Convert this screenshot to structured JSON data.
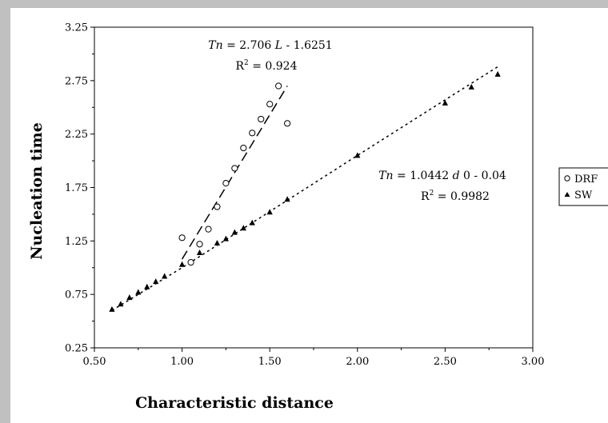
{
  "chart_data": {
    "type": "scatter",
    "xlabel": "Characteristic distance",
    "ylabel": "Nucleation time",
    "xlim": [
      0.5,
      3.0
    ],
    "ylim": [
      0.25,
      3.25
    ],
    "x_ticks": [
      "0.50",
      "1.00",
      "1.50",
      "2.00",
      "2.50",
      "3.00"
    ],
    "y_ticks": [
      "0.25",
      "0.75",
      "1.25",
      "1.75",
      "2.25",
      "2.75",
      "3.25"
    ],
    "grid": false,
    "legend_position": "right",
    "series": [
      {
        "name": "DRF",
        "marker": "open-circle",
        "points": [
          [
            1.0,
            1.28
          ],
          [
            1.05,
            1.05
          ],
          [
            1.1,
            1.22
          ],
          [
            1.15,
            1.36
          ],
          [
            1.2,
            1.57
          ],
          [
            1.25,
            1.79
          ],
          [
            1.3,
            1.93
          ],
          [
            1.35,
            2.12
          ],
          [
            1.4,
            2.26
          ],
          [
            1.45,
            2.39
          ],
          [
            1.5,
            2.53
          ],
          [
            1.55,
            2.7
          ],
          [
            1.6,
            2.35
          ]
        ]
      },
      {
        "name": "SW",
        "marker": "filled-triangle",
        "points": [
          [
            0.6,
            0.61
          ],
          [
            0.65,
            0.66
          ],
          [
            0.7,
            0.72
          ],
          [
            0.75,
            0.77
          ],
          [
            0.8,
            0.82
          ],
          [
            0.85,
            0.87
          ],
          [
            0.9,
            0.92
          ],
          [
            1.0,
            1.03
          ],
          [
            1.1,
            1.14
          ],
          [
            1.2,
            1.23
          ],
          [
            1.25,
            1.27
          ],
          [
            1.3,
            1.33
          ],
          [
            1.35,
            1.37
          ],
          [
            1.4,
            1.42
          ],
          [
            1.5,
            1.52
          ],
          [
            1.6,
            1.64
          ],
          [
            2.0,
            2.05
          ],
          [
            2.5,
            2.54
          ],
          [
            2.65,
            2.69
          ],
          [
            2.8,
            2.81
          ]
        ]
      }
    ],
    "trendlines": [
      {
        "series": "DRF",
        "style": "dashed",
        "from": [
          1.0,
          1.08
        ],
        "to": [
          1.6,
          2.7
        ],
        "equation_parts": [
          "Tn",
          " = 2.706 ",
          "L",
          " - 1.6251"
        ],
        "r2_value": " = 0.924"
      },
      {
        "series": "SW",
        "style": "dotted",
        "points": [
          [
            0.6,
            0.6
          ],
          [
            0.7,
            0.7
          ],
          [
            0.8,
            0.8
          ],
          [
            0.9,
            0.9
          ],
          [
            1.0,
            1.0
          ],
          [
            1.6,
            1.63
          ],
          [
            2.0,
            2.05
          ],
          [
            2.5,
            2.57
          ],
          [
            2.8,
            2.88
          ]
        ],
        "equation_parts": [
          "Tn",
          " = 1.0442 ",
          "d",
          " 0 - 0.04"
        ],
        "r2_value": " = 0.9982"
      }
    ],
    "r2_label": "R",
    "r2_exponent": "2"
  }
}
